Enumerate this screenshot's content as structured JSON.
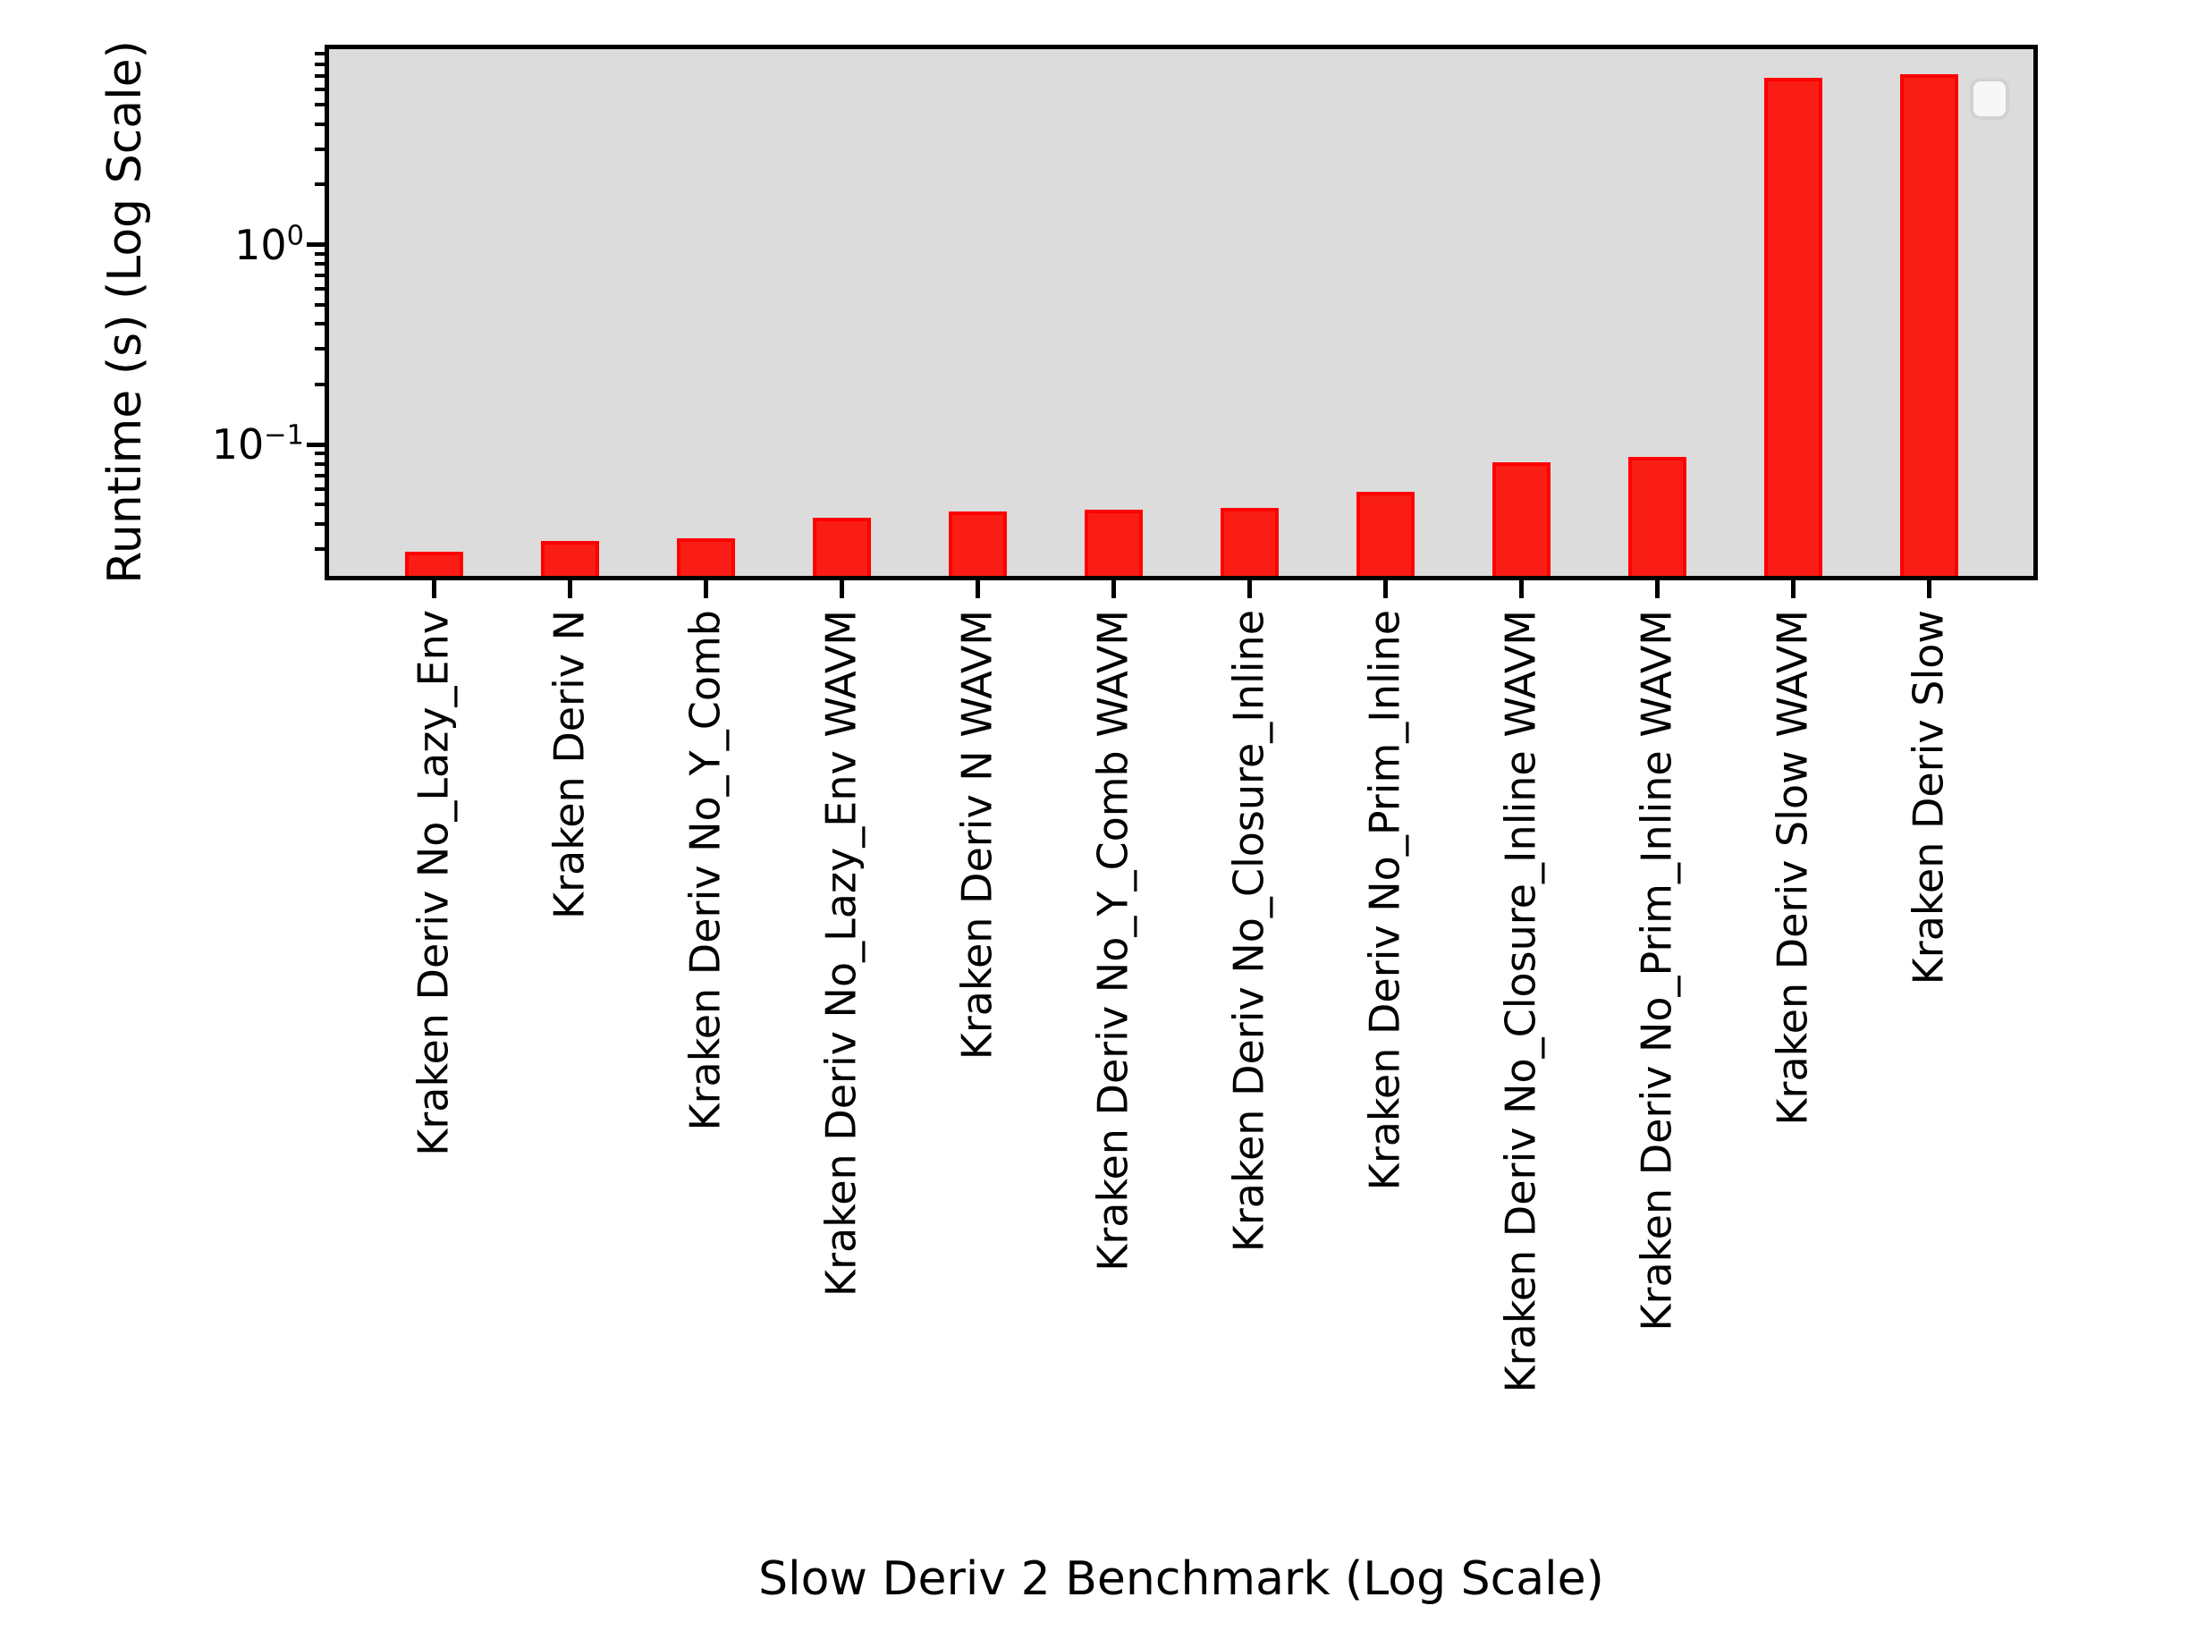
{
  "chart_data": {
    "type": "bar",
    "title": "",
    "xlabel": "Slow Deriv 2 Benchmark (Log Scale)",
    "ylabel": "Runtime (s) (Log Scale)",
    "yscale": "log",
    "ylim": [
      0.022,
      9.5
    ],
    "grid": false,
    "legend": {
      "visible": true,
      "entries": [],
      "position": "upper-right"
    },
    "categories": [
      "Kraken Deriv No_Lazy_Env",
      "Kraken Deriv N",
      "Kraken Deriv No_Y_Comb",
      "Kraken Deriv No_Lazy_Env WAVM",
      "Kraken Deriv N WAVM",
      "Kraken Deriv No_Y_Comb WAVM",
      "Kraken Deriv No_Closure_Inline",
      "Kraken Deriv No_Prim_Inline",
      "Kraken Deriv No_Closure_Inline WAVM",
      "Kraken Deriv No_Prim_Inline WAVM",
      "Kraken Deriv Slow WAVM",
      "Kraken Deriv Slow"
    ],
    "values": [
      0.029,
      0.033,
      0.034,
      0.043,
      0.046,
      0.047,
      0.048,
      0.058,
      0.081,
      0.087,
      6.8,
      7.1
    ],
    "ytick_major": [
      {
        "value": 1,
        "base": "10",
        "exponent": "0"
      },
      {
        "value": 0.1,
        "base": "10",
        "exponent": "−1"
      }
    ],
    "colors": {
      "bar_fill": "#f91d15",
      "bar_edge": "#ff0000",
      "plot_background": "#dcdcdc",
      "figure_background": "#ffffff",
      "axis": "#000000"
    }
  }
}
